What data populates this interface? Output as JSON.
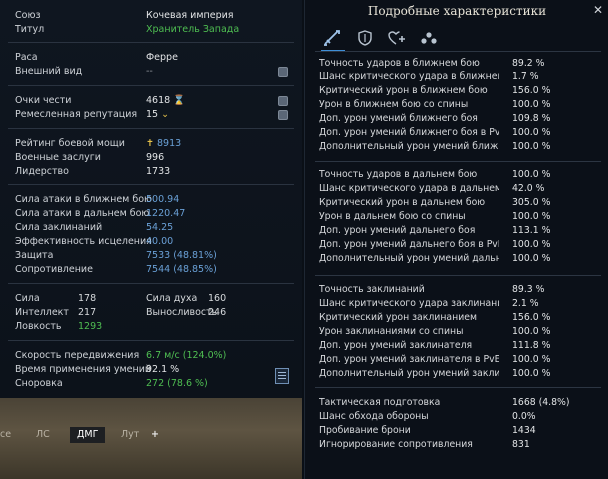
{
  "left": {
    "group1": [
      {
        "label": "Союз",
        "value": "Кочевая империя",
        "color": "normal"
      },
      {
        "label": "Титул",
        "value": "Хранитель Запада",
        "color": "green"
      }
    ],
    "group2": [
      {
        "label": "Раса",
        "value": "Ферре",
        "color": "normal"
      },
      {
        "label": "Внешний вид",
        "value": "--",
        "color": "dim"
      }
    ],
    "group3": [
      {
        "label": "Очки чести",
        "value": "4618",
        "color": "normal"
      },
      {
        "label": "Ремесленная репутация",
        "value": "15",
        "color": "normal"
      }
    ],
    "group4": [
      {
        "label": "Рейтинг боевой мощи",
        "value": "8913",
        "color": "blue"
      },
      {
        "label": "Военные заслуги",
        "value": "996",
        "color": "normal"
      },
      {
        "label": "Лидерство",
        "value": "1733",
        "color": "normal"
      }
    ],
    "group5": [
      {
        "label": "Сила атаки в ближнем бою",
        "value": "500.94",
        "color": "blue"
      },
      {
        "label": "Сила атаки в дальнем бою",
        "value": "1220.47",
        "color": "blue"
      },
      {
        "label": "Сила заклинаний",
        "value": "54.25",
        "color": "blue"
      },
      {
        "label": "Эффективность исцеления",
        "value": "40.00",
        "color": "blue"
      },
      {
        "label": "Защита",
        "value": "7533 (48.81%)",
        "color": "blue"
      },
      {
        "label": "Сопротивление",
        "value": "7544 (48.85%)",
        "color": "blue"
      }
    ],
    "attrs": [
      {
        "label": "Сила",
        "value": "178",
        "label2": "Сила духа",
        "value2": "160"
      },
      {
        "label": "Интеллект",
        "value": "217",
        "label2": "Выносливость",
        "value2": "246"
      },
      {
        "label": "Ловкость",
        "value": "1293",
        "label2": "",
        "value2": ""
      }
    ],
    "group7": [
      {
        "label": "Скорость передвижения",
        "value": "6.7 м/с (124.0%)",
        "color": "green"
      },
      {
        "label": "Время применения умений",
        "value": "92.1 %",
        "color": "normal"
      },
      {
        "label": "Сноровка",
        "value": "272 (78.6 %)",
        "color": "green"
      }
    ]
  },
  "tabs": [
    "се",
    "ЛС",
    "ДМГ",
    "Лут",
    "+"
  ],
  "right": {
    "title": "Подробные характеристики",
    "close": "✕",
    "tab_icons": [
      "sword-icon",
      "shield-icon",
      "heart-plus-icon",
      "group-icon"
    ],
    "melee": [
      {
        "label": "Точность ударов в ближнем бою",
        "value": "89.2 %",
        "color": "normal"
      },
      {
        "label": "Шанс критического удара в ближнем бою",
        "value": "1.7 %",
        "color": "green"
      },
      {
        "label": "Критический урон в ближнем бою",
        "value": "156.0 %",
        "color": "green"
      },
      {
        "label": "Урон в ближнем бою со спины",
        "value": "100.0 %",
        "color": "normal"
      },
      {
        "label": "Доп. урон умений ближнего боя",
        "value": "109.8 %",
        "color": "green"
      },
      {
        "label": "Доп. урон умений ближнего боя в PvE",
        "value": "100.0 %",
        "color": "normal"
      },
      {
        "label": "Дополнительный урон умений ближне...",
        "value": "100.0 %",
        "color": "normal"
      }
    ],
    "ranged": [
      {
        "label": "Точность ударов в дальнем бою",
        "value": "100.0 %",
        "color": "green"
      },
      {
        "label": "Шанс критического удара в дальнем бою",
        "value": "42.0 %",
        "color": "green"
      },
      {
        "label": "Критический урон в дальнем бою",
        "value": "305.0 %",
        "color": "green"
      },
      {
        "label": "Урон в дальнем бою со спины",
        "value": "100.0 %",
        "color": "normal"
      },
      {
        "label": "Доп. урон умений дальнего боя",
        "value": "113.1 %",
        "color": "green"
      },
      {
        "label": "Доп. урон умений дальнего боя в PvE",
        "value": "100.0 %",
        "color": "normal"
      },
      {
        "label": "Дополнительный урон умений дальнег...",
        "value": "100.0 %",
        "color": "normal"
      }
    ],
    "magic": [
      {
        "label": "Точность заклинаний",
        "value": "89.3 %",
        "color": "normal"
      },
      {
        "label": "Шанс критического удара заклинанием",
        "value": "2.1 %",
        "color": "normal"
      },
      {
        "label": "Критический урон заклинанием",
        "value": "156.0 %",
        "color": "green"
      },
      {
        "label": "Урон заклинаниями со спины",
        "value": "100.0 %",
        "color": "normal"
      },
      {
        "label": "Доп. урон умений заклинателя",
        "value": "111.8 %",
        "color": "green"
      },
      {
        "label": "Доп. урон умений заклинателя в PvE",
        "value": "100.0 %",
        "color": "normal"
      },
      {
        "label": "Дополнительный урон умений заклина...",
        "value": "100.0 %",
        "color": "normal"
      }
    ],
    "misc": [
      {
        "label": "Тактическая подготовка",
        "value": "1668 (4.8%)",
        "color": "green"
      },
      {
        "label": "Шанс обхода обороны",
        "value": "0.0%",
        "color": "normal"
      },
      {
        "label": "Пробивание брони",
        "value": "1434",
        "color": "normal"
      },
      {
        "label": "Игнорирование сопротивления",
        "value": "831",
        "color": "normal"
      }
    ]
  }
}
